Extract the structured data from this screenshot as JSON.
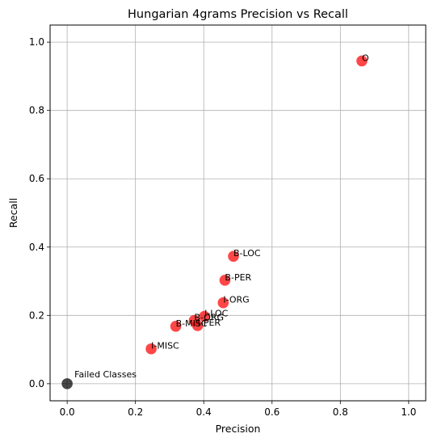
{
  "chart_data": {
    "type": "scatter",
    "title": "Hungarian 4grams Precision vs Recall",
    "xlabel": "Precision",
    "ylabel": "Recall",
    "xlim": [
      -0.05,
      1.05
    ],
    "ylim": [
      -0.05,
      1.05
    ],
    "xticks": [
      "0.0",
      "0.2",
      "0.4",
      "0.6",
      "0.8",
      "1.0"
    ],
    "yticks": [
      "0.0",
      "0.2",
      "0.4",
      "0.6",
      "0.8",
      "1.0"
    ],
    "grid": true,
    "points": [
      {
        "label": "O",
        "x": 0.863,
        "y": 0.945,
        "color": "#ff0000"
      },
      {
        "label": "B-LOC",
        "x": 0.487,
        "y": 0.373,
        "color": "#ff0000"
      },
      {
        "label": "B-PER",
        "x": 0.462,
        "y": 0.303,
        "color": "#ff0000"
      },
      {
        "label": "I-ORG",
        "x": 0.457,
        "y": 0.237,
        "color": "#ff0000"
      },
      {
        "label": "I-LOC",
        "x": 0.402,
        "y": 0.197,
        "color": "#ff0000"
      },
      {
        "label": "B-ORG",
        "x": 0.372,
        "y": 0.185,
        "color": "#ff0000"
      },
      {
        "label": "B-MISC",
        "x": 0.318,
        "y": 0.168,
        "color": "#ff0000"
      },
      {
        "label": "I-PER",
        "x": 0.382,
        "y": 0.17,
        "color": "#ff0000"
      },
      {
        "label": "I-MISC",
        "x": 0.246,
        "y": 0.102,
        "color": "#ff0000"
      },
      {
        "label": "Failed Classes",
        "x": 0.0,
        "y": 0.0,
        "color": "#000000"
      }
    ]
  }
}
